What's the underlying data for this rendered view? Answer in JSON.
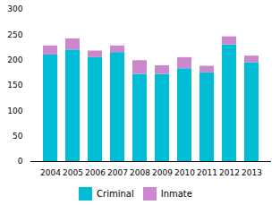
{
  "chart_data": {
    "type": "bar",
    "stacked": true,
    "categories": [
      "2004",
      "2005",
      "2006",
      "2007",
      "2008",
      "2009",
      "2010",
      "2011",
      "2012",
      "2013"
    ],
    "series": [
      {
        "name": "Criminal",
        "color": "#00bcd4",
        "values": [
          210,
          220,
          205,
          215,
          172,
          172,
          183,
          175,
          230,
          195
        ]
      },
      {
        "name": "Inmate",
        "color": "#cc88cc",
        "values": [
          18,
          22,
          13,
          13,
          27,
          17,
          22,
          13,
          16,
          13
        ]
      }
    ],
    "ylim": [
      0,
      300
    ],
    "yticks": [
      0,
      50,
      100,
      150,
      200,
      250,
      300
    ],
    "grid": false,
    "legend": "bottom"
  }
}
